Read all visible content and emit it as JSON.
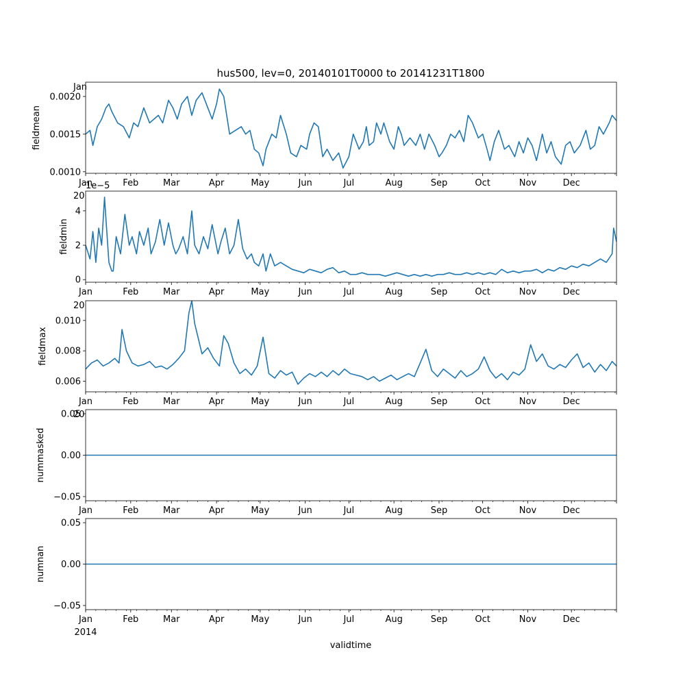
{
  "figure": {
    "title": "hus500, lev=0, 20140101T0000 to 20141231T1800",
    "xlabel": "validtime",
    "year_label": "2014",
    "line_color": "#1f77b4"
  },
  "chart_data": [
    {
      "type": "line",
      "id": "fieldmean",
      "ylabel": "fieldmean",
      "x_unit": "day-of-year 2014",
      "xlim": [
        0,
        365
      ],
      "ylim": [
        0.00098,
        0.00219
      ],
      "yticks": [
        0.001,
        0.0015,
        0.002
      ],
      "ytick_labels": [
        "0.0010",
        "0.0015",
        "0.0020"
      ],
      "offset_label": "",
      "clipped_label": "Jan",
      "series": [
        {
          "name": "fieldmean",
          "x": [
            0,
            3,
            5,
            8,
            11,
            14,
            16,
            18,
            22,
            26,
            30,
            33,
            36,
            40,
            44,
            47,
            50,
            53,
            57,
            60,
            63,
            66,
            70,
            73,
            76,
            80,
            84,
            87,
            90,
            92,
            95,
            99,
            103,
            107,
            110,
            113,
            116,
            119,
            122,
            124,
            128,
            131,
            134,
            138,
            141,
            145,
            148,
            152,
            154,
            157,
            160,
            163,
            166,
            170,
            174,
            177,
            181,
            184,
            188,
            191,
            193,
            195,
            198,
            200,
            203,
            205,
            209,
            212,
            215,
            217,
            219,
            223,
            227,
            230,
            233,
            236,
            240,
            243,
            245,
            248,
            251,
            254,
            257,
            260,
            263,
            266,
            270,
            273,
            276,
            278,
            281,
            284,
            288,
            291,
            295,
            298,
            301,
            304,
            307,
            310,
            314,
            317,
            320,
            323,
            327,
            330,
            333,
            336,
            340,
            344,
            347,
            350,
            353,
            356,
            360,
            362,
            365
          ],
          "y": [
            0.0015,
            0.00155,
            0.00135,
            0.0016,
            0.0017,
            0.00185,
            0.0019,
            0.0018,
            0.00165,
            0.0016,
            0.00145,
            0.00165,
            0.0016,
            0.00185,
            0.00165,
            0.0017,
            0.00175,
            0.00165,
            0.00195,
            0.00185,
            0.0017,
            0.0019,
            0.002,
            0.00175,
            0.00195,
            0.00205,
            0.00185,
            0.0017,
            0.0019,
            0.0021,
            0.002,
            0.0015,
            0.00155,
            0.0016,
            0.0015,
            0.00155,
            0.0013,
            0.00125,
            0.00108,
            0.0013,
            0.0015,
            0.00145,
            0.00175,
            0.0015,
            0.00125,
            0.0012,
            0.00135,
            0.0013,
            0.0015,
            0.00165,
            0.0016,
            0.0012,
            0.0013,
            0.00115,
            0.00125,
            0.00105,
            0.0012,
            0.0015,
            0.0013,
            0.0014,
            0.0016,
            0.00135,
            0.0014,
            0.00165,
            0.0015,
            0.00165,
            0.0014,
            0.0013,
            0.0016,
            0.0015,
            0.00135,
            0.00145,
            0.00135,
            0.0015,
            0.0013,
            0.0015,
            0.00135,
            0.0012,
            0.00125,
            0.00135,
            0.0015,
            0.00145,
            0.00155,
            0.0014,
            0.00175,
            0.00165,
            0.00145,
            0.0015,
            0.0013,
            0.00115,
            0.0014,
            0.00155,
            0.0013,
            0.00135,
            0.0012,
            0.0014,
            0.00125,
            0.00145,
            0.00135,
            0.00115,
            0.0015,
            0.00125,
            0.0014,
            0.0012,
            0.0011,
            0.00135,
            0.0014,
            0.00125,
            0.00135,
            0.00155,
            0.0013,
            0.00135,
            0.0016,
            0.0015,
            0.00165,
            0.00175,
            0.00168
          ]
        }
      ]
    },
    {
      "type": "line",
      "id": "fieldmin",
      "ylabel": "fieldmin",
      "x_unit": "day-of-year 2014",
      "xlim": [
        0,
        365
      ],
      "ylim": [
        -0.15,
        5.15
      ],
      "yticks": [
        0,
        2,
        4
      ],
      "ytick_labels": [
        "0",
        "2",
        "4"
      ],
      "offset_label": "1e−5",
      "clipped_label": "20",
      "series": [
        {
          "name": "fieldmin",
          "x": [
            0,
            3,
            5,
            7,
            9,
            11,
            13,
            14,
            16,
            18,
            19,
            21,
            24,
            27,
            30,
            32,
            35,
            37,
            40,
            43,
            45,
            48,
            51,
            54,
            57,
            60,
            62,
            64,
            67,
            70,
            73,
            75,
            78,
            81,
            84,
            87,
            91,
            93,
            96,
            99,
            102,
            105,
            108,
            111,
            114,
            116,
            119,
            122,
            124,
            127,
            130,
            134,
            138,
            142,
            146,
            150,
            154,
            158,
            162,
            166,
            170,
            174,
            178,
            182,
            186,
            190,
            194,
            198,
            202,
            206,
            210,
            214,
            218,
            222,
            226,
            230,
            234,
            238,
            242,
            246,
            250,
            254,
            258,
            262,
            266,
            270,
            274,
            278,
            282,
            286,
            290,
            294,
            298,
            302,
            306,
            310,
            314,
            318,
            322,
            326,
            330,
            334,
            338,
            342,
            346,
            350,
            354,
            358,
            362,
            363,
            365
          ],
          "y": [
            2.0,
            1.2,
            2.8,
            1.0,
            3.0,
            2.0,
            4.8,
            3.5,
            1.0,
            0.5,
            0.5,
            2.5,
            1.5,
            3.8,
            2.0,
            2.5,
            1.5,
            2.8,
            2.0,
            3.0,
            1.5,
            2.2,
            3.5,
            2.0,
            3.3,
            2.0,
            1.5,
            1.8,
            2.5,
            1.5,
            4.0,
            2.0,
            1.5,
            2.5,
            1.8,
            3.2,
            1.5,
            2.2,
            3.0,
            1.5,
            2.0,
            3.5,
            1.8,
            1.2,
            1.5,
            1.0,
            0.8,
            1.5,
            0.5,
            1.5,
            0.8,
            1.0,
            0.8,
            0.6,
            0.5,
            0.4,
            0.6,
            0.5,
            0.4,
            0.6,
            0.7,
            0.4,
            0.5,
            0.3,
            0.3,
            0.4,
            0.3,
            0.3,
            0.3,
            0.2,
            0.3,
            0.4,
            0.3,
            0.2,
            0.3,
            0.2,
            0.3,
            0.2,
            0.3,
            0.3,
            0.4,
            0.3,
            0.3,
            0.4,
            0.3,
            0.4,
            0.3,
            0.4,
            0.3,
            0.6,
            0.4,
            0.5,
            0.4,
            0.5,
            0.5,
            0.6,
            0.4,
            0.6,
            0.5,
            0.7,
            0.6,
            0.8,
            0.7,
            0.9,
            0.8,
            1.0,
            1.2,
            1.0,
            1.5,
            3.0,
            2.2
          ]
        }
      ]
    },
    {
      "type": "line",
      "id": "fieldmax",
      "ylabel": "fieldmax",
      "x_unit": "day-of-year 2014",
      "xlim": [
        0,
        365
      ],
      "ylim": [
        0.0053,
        0.0113
      ],
      "yticks": [
        0.006,
        0.008,
        0.01
      ],
      "ytick_labels": [
        "0.006",
        "0.008",
        "0.010"
      ],
      "offset_label": "",
      "clipped_label": "20",
      "series": [
        {
          "name": "fieldmax",
          "x": [
            0,
            4,
            8,
            12,
            16,
            20,
            23,
            25,
            28,
            32,
            36,
            40,
            44,
            48,
            52,
            56,
            60,
            64,
            68,
            71,
            73,
            75,
            77,
            80,
            84,
            88,
            92,
            95,
            98,
            102,
            106,
            110,
            114,
            118,
            122,
            126,
            130,
            134,
            138,
            142,
            146,
            150,
            154,
            158,
            162,
            166,
            170,
            174,
            178,
            182,
            186,
            190,
            194,
            198,
            202,
            206,
            210,
            214,
            218,
            222,
            226,
            230,
            234,
            238,
            242,
            246,
            250,
            254,
            258,
            262,
            266,
            270,
            274,
            278,
            282,
            286,
            290,
            294,
            298,
            302,
            306,
            310,
            314,
            318,
            322,
            326,
            330,
            334,
            338,
            342,
            346,
            350,
            354,
            358,
            362,
            365
          ],
          "y": [
            0.0068,
            0.0072,
            0.0074,
            0.007,
            0.0072,
            0.0075,
            0.0072,
            0.0094,
            0.008,
            0.0072,
            0.007,
            0.0071,
            0.0073,
            0.0069,
            0.007,
            0.0068,
            0.0071,
            0.0075,
            0.008,
            0.0105,
            0.0113,
            0.0098,
            0.009,
            0.0078,
            0.0082,
            0.0075,
            0.007,
            0.009,
            0.0085,
            0.0072,
            0.0065,
            0.0068,
            0.0064,
            0.007,
            0.0089,
            0.0065,
            0.0062,
            0.0067,
            0.0064,
            0.0066,
            0.0058,
            0.0062,
            0.0065,
            0.0063,
            0.0066,
            0.0063,
            0.0067,
            0.0064,
            0.0068,
            0.0065,
            0.0064,
            0.0063,
            0.0061,
            0.0063,
            0.006,
            0.0062,
            0.0064,
            0.0061,
            0.0063,
            0.0065,
            0.0063,
            0.0072,
            0.0081,
            0.0067,
            0.0063,
            0.0068,
            0.0065,
            0.0062,
            0.0067,
            0.0063,
            0.0065,
            0.0068,
            0.0076,
            0.0067,
            0.0062,
            0.0065,
            0.0061,
            0.0066,
            0.0064,
            0.0068,
            0.0084,
            0.0073,
            0.0078,
            0.007,
            0.0068,
            0.0071,
            0.0069,
            0.0074,
            0.0078,
            0.0069,
            0.0072,
            0.0066,
            0.0071,
            0.0067,
            0.0073,
            0.007
          ]
        }
      ]
    },
    {
      "type": "line",
      "id": "nummasked",
      "ylabel": "nummasked",
      "x_unit": "day-of-year 2014",
      "xlim": [
        0,
        365
      ],
      "ylim": [
        -0.055,
        0.055
      ],
      "yticks": [
        -0.05,
        0.0,
        0.05
      ],
      "ytick_labels": [
        "−0.05",
        "0.00",
        "0.05"
      ],
      "offset_label": "",
      "clipped_label": "20",
      "series": [
        {
          "name": "nummasked",
          "x": [
            0,
            365
          ],
          "y": [
            0,
            0
          ]
        }
      ]
    },
    {
      "type": "line",
      "id": "numnan",
      "ylabel": "numnan",
      "x_unit": "day-of-year 2014",
      "xlim": [
        0,
        365
      ],
      "ylim": [
        -0.055,
        0.055
      ],
      "yticks": [
        -0.05,
        0.0,
        0.05
      ],
      "ytick_labels": [
        "−0.05",
        "0.00",
        "0.05"
      ],
      "offset_label": "",
      "clipped_label": "",
      "series": [
        {
          "name": "numnan",
          "x": [
            0,
            365
          ],
          "y": [
            0,
            0
          ]
        }
      ]
    }
  ],
  "x_axis": {
    "month_labels": [
      "Jan",
      "Feb",
      "Mar",
      "Apr",
      "May",
      "Jun",
      "Jul",
      "Aug",
      "Sep",
      "Oct",
      "Nov",
      "Dec"
    ],
    "month_starts": [
      0,
      31,
      59,
      90,
      120,
      151,
      181,
      212,
      243,
      273,
      304,
      334
    ],
    "minor_tick_step_days": 7
  }
}
